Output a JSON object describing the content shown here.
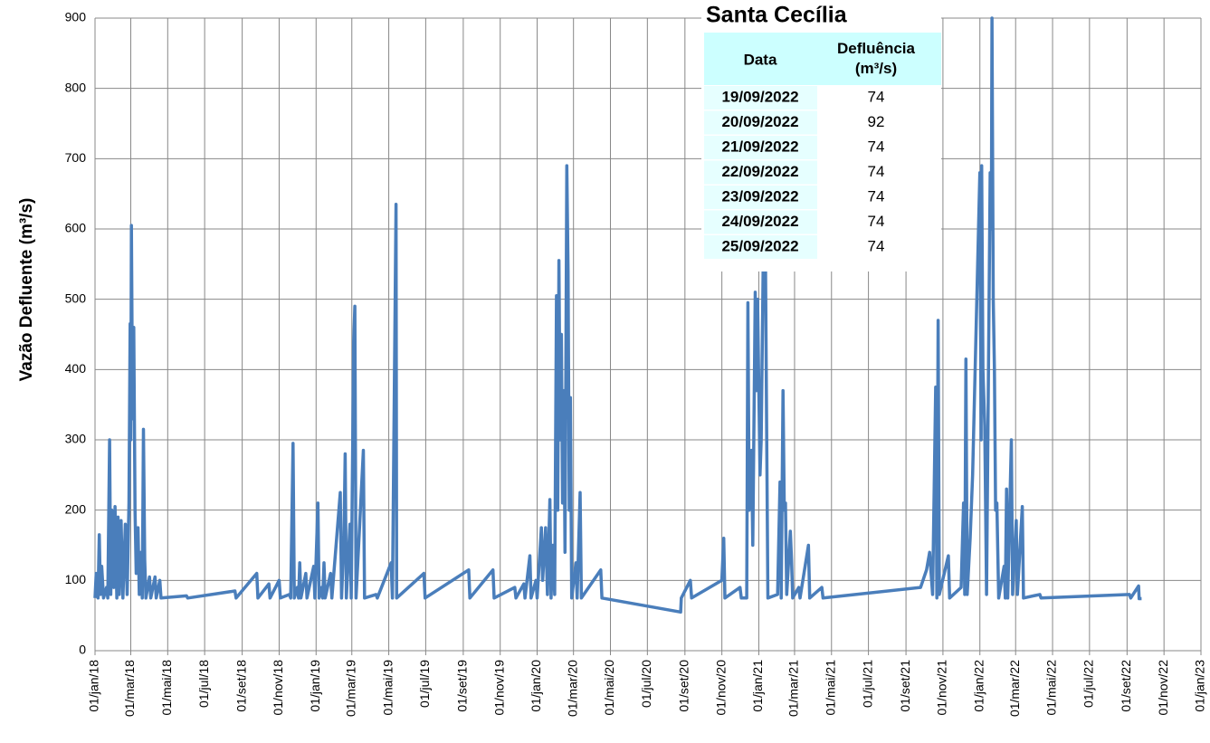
{
  "chart_data": {
    "type": "line",
    "y_label": "Vazão Defluente (m³/s)",
    "xlim": [
      "2018-01-01",
      "2023-01-01"
    ],
    "xticks": [
      {
        "value": "2018-01-01",
        "label": "01/jan/18"
      },
      {
        "value": "2018-03-01",
        "label": "01/mar/18"
      },
      {
        "value": "2018-05-01",
        "label": "01/mai/18"
      },
      {
        "value": "2018-07-01",
        "label": "01/jul/18"
      },
      {
        "value": "2018-09-01",
        "label": "01/set/18"
      },
      {
        "value": "2018-11-01",
        "label": "01/nov/18"
      },
      {
        "value": "2019-01-01",
        "label": "01/jan/19"
      },
      {
        "value": "2019-03-01",
        "label": "01/mar/19"
      },
      {
        "value": "2019-05-01",
        "label": "01/mai/19"
      },
      {
        "value": "2019-07-01",
        "label": "01/jul/19"
      },
      {
        "value": "2019-09-01",
        "label": "01/set/19"
      },
      {
        "value": "2019-11-01",
        "label": "01/nov/19"
      },
      {
        "value": "2020-01-01",
        "label": "01/jan/20"
      },
      {
        "value": "2020-03-01",
        "label": "01/mar/20"
      },
      {
        "value": "2020-05-01",
        "label": "01/mai/20"
      },
      {
        "value": "2020-07-01",
        "label": "01/jul/20"
      },
      {
        "value": "2020-09-01",
        "label": "01/set/20"
      },
      {
        "value": "2020-11-01",
        "label": "01/nov/20"
      },
      {
        "value": "2021-01-01",
        "label": "01/jan/21"
      },
      {
        "value": "2021-03-01",
        "label": "01/mar/21"
      },
      {
        "value": "2021-05-01",
        "label": "01/mai/21"
      },
      {
        "value": "2021-07-01",
        "label": "01/jul/21"
      },
      {
        "value": "2021-09-01",
        "label": "01/set/21"
      },
      {
        "value": "2021-11-01",
        "label": "01/nov/21"
      },
      {
        "value": "2022-01-01",
        "label": "01/jan/22"
      },
      {
        "value": "2022-03-01",
        "label": "01/mar/22"
      },
      {
        "value": "2022-05-01",
        "label": "01/mai/22"
      },
      {
        "value": "2022-07-01",
        "label": "01/jul/22"
      },
      {
        "value": "2022-09-01",
        "label": "01/set/22"
      },
      {
        "value": "2022-11-01",
        "label": "01/nov/22"
      },
      {
        "value": "2023-01-01",
        "label": "01/jan/23"
      }
    ],
    "ylim": [
      0,
      900
    ],
    "yticks": [
      0,
      100,
      200,
      300,
      400,
      500,
      600,
      700,
      800,
      900
    ],
    "grid": true,
    "series": [
      {
        "color": "#4a7ebb",
        "x": [
          "2018-01-01",
          "2018-01-03",
          "2018-01-06",
          "2018-01-08",
          "2018-01-10",
          "2018-01-12",
          "2018-01-15",
          "2018-01-20",
          "2018-01-22",
          "2018-01-25",
          "2018-01-27",
          "2018-01-29",
          "2018-02-01",
          "2018-02-03",
          "2018-02-06",
          "2018-02-08",
          "2018-02-10",
          "2018-02-13",
          "2018-02-16",
          "2018-02-20",
          "2018-02-23",
          "2018-02-26",
          "2018-02-28",
          "2018-03-01",
          "2018-03-02",
          "2018-03-04",
          "2018-03-06",
          "2018-03-08",
          "2018-03-10",
          "2018-03-13",
          "2018-03-15",
          "2018-03-18",
          "2018-03-20",
          "2018-03-22",
          "2018-03-24",
          "2018-03-26",
          "2018-04-01",
          "2018-04-03",
          "2018-04-10",
          "2018-04-12",
          "2018-04-18",
          "2018-04-20",
          "2018-06-01",
          "2018-06-03",
          "2018-08-20",
          "2018-08-22",
          "2018-09-25",
          "2018-09-27",
          "2018-10-15",
          "2018-10-17",
          "2018-11-01",
          "2018-11-03",
          "2018-11-18",
          "2018-11-20",
          "2018-11-24",
          "2018-11-26",
          "2018-12-01",
          "2018-12-03",
          "2018-12-05",
          "2018-12-07",
          "2018-12-15",
          "2018-12-17",
          "2018-12-28",
          "2018-12-30",
          "2019-01-04",
          "2019-01-06",
          "2019-01-10",
          "2019-01-12",
          "2019-01-14",
          "2019-01-16",
          "2019-01-25",
          "2019-01-27",
          "2019-02-10",
          "2019-02-12",
          "2019-02-16",
          "2019-02-18",
          "2019-02-20",
          "2019-02-26",
          "2019-02-28",
          "2019-03-04",
          "2019-03-06",
          "2019-03-08",
          "2019-03-20",
          "2019-03-22",
          "2019-04-10",
          "2019-04-12",
          "2019-05-05",
          "2019-05-07",
          "2019-05-13",
          "2019-05-14",
          "2019-06-28",
          "2019-06-30",
          "2019-09-10",
          "2019-09-12",
          "2019-10-20",
          "2019-10-22",
          "2019-11-25",
          "2019-11-27",
          "2019-12-10",
          "2019-12-12",
          "2019-12-20",
          "2019-12-22",
          "2019-12-30",
          "2020-01-01",
          "2020-01-08",
          "2020-01-10",
          "2020-01-15",
          "2020-01-18",
          "2020-01-22",
          "2020-01-24",
          "2020-01-27",
          "2020-01-30",
          "2020-02-02",
          "2020-02-04",
          "2020-02-06",
          "2020-02-08",
          "2020-02-10",
          "2020-02-12",
          "2020-02-14",
          "2020-02-16",
          "2020-02-19",
          "2020-02-21",
          "2020-02-23",
          "2020-02-25",
          "2020-02-27",
          "2020-03-05",
          "2020-03-07",
          "2020-03-12",
          "2020-03-14",
          "2020-04-15",
          "2020-04-17",
          "2020-08-25",
          "2020-08-26",
          "2020-09-10",
          "2020-09-12",
          "2020-11-01",
          "2020-11-04",
          "2020-11-06",
          "2020-12-01",
          "2020-12-03",
          "2020-12-12",
          "2020-12-14",
          "2020-12-16",
          "2020-12-20",
          "2020-12-22",
          "2020-12-26",
          "2020-12-28",
          "2020-12-30",
          "2021-01-03",
          "2021-01-05",
          "2021-01-08",
          "2021-01-10",
          "2021-01-12",
          "2021-01-14",
          "2021-01-16",
          "2021-02-01",
          "2021-02-05",
          "2021-02-07",
          "2021-02-10",
          "2021-02-12",
          "2021-02-14",
          "2021-02-16",
          "2021-02-22",
          "2021-02-24",
          "2021-02-26",
          "2021-03-08",
          "2021-03-10",
          "2021-03-24",
          "2021-03-26",
          "2021-04-15",
          "2021-04-17",
          "2021-09-25",
          "2021-10-05",
          "2021-10-10",
          "2021-10-15",
          "2021-10-20",
          "2021-10-22",
          "2021-10-24",
          "2021-10-26",
          "2021-11-10",
          "2021-11-12",
          "2021-12-01",
          "2021-12-05",
          "2021-12-07",
          "2021-12-09",
          "2021-12-11",
          "2021-12-16",
          "2021-12-20",
          "2022-01-01",
          "2022-01-03",
          "2022-01-04",
          "2022-01-06",
          "2022-01-09",
          "2022-01-12",
          "2022-01-18",
          "2022-01-20",
          "2022-01-21",
          "2022-01-23",
          "2022-01-25",
          "2022-01-27",
          "2022-01-29",
          "2022-02-01",
          "2022-02-10",
          "2022-02-12",
          "2022-02-14",
          "2022-02-16",
          "2022-02-22",
          "2022-02-24",
          "2022-03-02",
          "2022-03-04",
          "2022-03-12",
          "2022-03-14",
          "2022-04-10",
          "2022-04-12",
          "2022-09-05",
          "2022-09-07",
          "2022-09-20",
          "2022-09-21",
          "2022-09-25"
        ],
        "values": [
          75,
          110,
          75,
          165,
          80,
          120,
          75,
          90,
          75,
          300,
          80,
          200,
          90,
          205,
          75,
          190,
          80,
          185,
          75,
          180,
          80,
          210,
          465,
          300,
          605,
          330,
          460,
          200,
          110,
          175,
          80,
          140,
          75,
          315,
          130,
          75,
          105,
          75,
          105,
          75,
          100,
          75,
          78,
          75,
          85,
          75,
          110,
          75,
          95,
          75,
          100,
          75,
          80,
          75,
          295,
          75,
          90,
          75,
          125,
          75,
          110,
          75,
          120,
          75,
          210,
          75,
          90,
          75,
          125,
          75,
          110,
          75,
          225,
          75,
          165,
          280,
          75,
          180,
          75,
          440,
          490,
          75,
          285,
          75,
          80,
          75,
          125,
          75,
          635,
          75,
          110,
          75,
          115,
          75,
          115,
          75,
          90,
          75,
          95,
          75,
          135,
          75,
          100,
          75,
          175,
          100,
          175,
          80,
          215,
          75,
          150,
          80,
          505,
          200,
          555,
          300,
          450,
          210,
          370,
          140,
          690,
          540,
          200,
          360,
          75,
          125,
          75,
          225,
          75,
          115,
          75,
          55,
          75,
          100,
          75,
          100,
          160,
          75,
          90,
          75,
          75,
          495,
          200,
          285,
          150,
          510,
          370,
          500,
          250,
          300,
          540,
          700,
          560,
          300,
          75,
          80,
          240,
          75,
          370,
          200,
          210,
          80,
          170,
          130,
          75,
          90,
          75,
          150,
          75,
          90,
          75,
          90,
          115,
          140,
          80,
          375,
          75,
          470,
          80,
          135,
          75,
          90,
          210,
          80,
          415,
          80,
          160,
          250,
          680,
          300,
          690,
          400,
          320,
          80,
          680,
          600,
          900,
          500,
          400,
          200,
          210,
          75,
          120,
          75,
          230,
          75,
          300,
          80,
          185,
          80,
          205,
          75,
          80,
          75,
          80,
          75,
          92,
          74,
          74
        ]
      }
    ]
  },
  "table": {
    "title": "Santa Cecília",
    "header": [
      "Data",
      "Defluência (m³/s)"
    ],
    "rows": [
      [
        "19/09/2022",
        74
      ],
      [
        "20/09/2022",
        92
      ],
      [
        "21/09/2022",
        74
      ],
      [
        "22/09/2022",
        74
      ],
      [
        "23/09/2022",
        74
      ],
      [
        "24/09/2022",
        74
      ],
      [
        "25/09/2022",
        74
      ]
    ]
  }
}
